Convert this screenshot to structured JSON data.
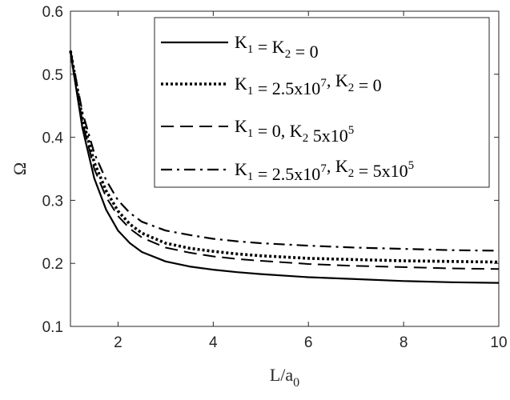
{
  "chart_data": {
    "type": "line",
    "xlabel": "L/a",
    "xlabel_sub": "0",
    "ylabel": "Ω",
    "xlim": [
      1,
      10
    ],
    "ylim": [
      0.1,
      0.6
    ],
    "xticks": [
      2,
      4,
      6,
      8,
      10
    ],
    "yticks": [
      0.1,
      0.2,
      0.3,
      0.4,
      0.5,
      0.6
    ],
    "grid": false,
    "legend_position": "top-right",
    "series": [
      {
        "name": "K1 = K2 = 0",
        "legend_parts": [
          {
            "t": "K",
            "s": "n"
          },
          {
            "t": "1",
            "s": "sub"
          },
          {
            "t": " = K",
            "s": "n"
          },
          {
            "t": "2",
            "s": "sub"
          },
          {
            "t": " = 0",
            "s": "n"
          }
        ],
        "style": "solid",
        "color": "#000000",
        "x": [
          1,
          1.25,
          1.5,
          1.75,
          2,
          2.25,
          2.5,
          3,
          3.5,
          4,
          4.5,
          5,
          6,
          7,
          8,
          9,
          10
        ],
        "y": [
          0.535,
          0.415,
          0.335,
          0.285,
          0.252,
          0.232,
          0.218,
          0.203,
          0.195,
          0.19,
          0.186,
          0.183,
          0.178,
          0.175,
          0.172,
          0.17,
          0.169
        ]
      },
      {
        "name": "K1 = 2.5x10^7, K2 = 0",
        "legend_parts": [
          {
            "t": "K",
            "s": "n"
          },
          {
            "t": "1",
            "s": "sub"
          },
          {
            "t": " = 2.5x10",
            "s": "n"
          },
          {
            "t": "7",
            "s": "sup"
          },
          {
            "t": ", K",
            "s": "n"
          },
          {
            "t": "2",
            "s": "sub"
          },
          {
            "t": " = 0",
            "s": "n"
          }
        ],
        "style": "dotted",
        "color": "#000000",
        "x": [
          1,
          1.25,
          1.5,
          1.75,
          2,
          2.25,
          2.5,
          3,
          3.5,
          4,
          4.5,
          5,
          6,
          7,
          8,
          9,
          10
        ],
        "y": [
          0.537,
          0.43,
          0.36,
          0.315,
          0.283,
          0.262,
          0.248,
          0.232,
          0.224,
          0.219,
          0.215,
          0.212,
          0.208,
          0.206,
          0.204,
          0.203,
          0.202
        ]
      },
      {
        "name": "K1 = 0, K2 5x10^5",
        "legend_parts": [
          {
            "t": "K",
            "s": "n"
          },
          {
            "t": "1",
            "s": "sub"
          },
          {
            "t": " = 0, K",
            "s": "n"
          },
          {
            "t": "2",
            "s": "sub"
          },
          {
            "t": " 5x10",
            "s": "n"
          },
          {
            "t": "5",
            "s": "sup"
          }
        ],
        "style": "dashed",
        "color": "#000000",
        "x": [
          1,
          1.25,
          1.5,
          1.75,
          2,
          2.25,
          2.5,
          3,
          3.5,
          4,
          4.5,
          5,
          6,
          7,
          8,
          9,
          10
        ],
        "y": [
          0.536,
          0.425,
          0.35,
          0.305,
          0.275,
          0.255,
          0.241,
          0.225,
          0.217,
          0.211,
          0.207,
          0.204,
          0.199,
          0.196,
          0.194,
          0.192,
          0.191
        ]
      },
      {
        "name": "K1 = 2.5x10^7, K2 = 5x10^5",
        "legend_parts": [
          {
            "t": "K",
            "s": "n"
          },
          {
            "t": "1",
            "s": "sub"
          },
          {
            "t": " = 2.5x10",
            "s": "n"
          },
          {
            "t": "7",
            "s": "sup"
          },
          {
            "t": ", K",
            "s": "n"
          },
          {
            "t": "2",
            "s": "sub"
          },
          {
            "t": " = 5x10",
            "s": "n"
          },
          {
            "t": "5",
            "s": "sup"
          }
        ],
        "style": "dashdot",
        "color": "#000000",
        "x": [
          1,
          1.25,
          1.5,
          1.75,
          2,
          2.25,
          2.5,
          3,
          3.5,
          4,
          4.5,
          5,
          6,
          7,
          8,
          9,
          10
        ],
        "y": [
          0.538,
          0.44,
          0.375,
          0.332,
          0.3,
          0.28,
          0.266,
          0.252,
          0.245,
          0.239,
          0.235,
          0.232,
          0.228,
          0.225,
          0.223,
          0.221,
          0.22
        ]
      }
    ]
  }
}
